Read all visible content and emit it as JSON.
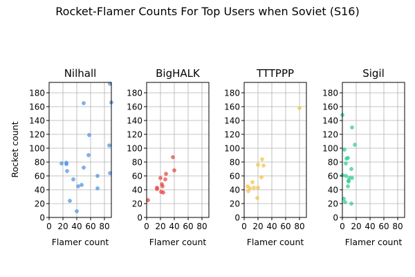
{
  "chart_data": {
    "type": "scatter",
    "title": "Rocket-Flamer Counts For Top Users when Soviet (S16)",
    "xlabel": "Flamer count",
    "ylabel": "Rocket count",
    "xlim": [
      0,
      90
    ],
    "ylim": [
      0,
      195
    ],
    "xticks": [
      0,
      20,
      40,
      60,
      80
    ],
    "yticks": [
      0,
      20,
      40,
      60,
      80,
      100,
      120,
      140,
      160,
      180
    ],
    "grid": true,
    "panels": [
      {
        "name": "Nilhall",
        "color": "#4a90e2",
        "points": [
          [
            88,
            193
          ],
          [
            50,
            165
          ],
          [
            90,
            166
          ],
          [
            58,
            119
          ],
          [
            87,
            104
          ],
          [
            57,
            90
          ],
          [
            18,
            78
          ],
          [
            25,
            79
          ],
          [
            25,
            77
          ],
          [
            26,
            67
          ],
          [
            50,
            72
          ],
          [
            35,
            55
          ],
          [
            47,
            47
          ],
          [
            42,
            45
          ],
          [
            70,
            60
          ],
          [
            88,
            64
          ],
          [
            70,
            42
          ],
          [
            30,
            24
          ],
          [
            40,
            9
          ]
        ]
      },
      {
        "name": "BigHALK",
        "color": "#e8413c",
        "points": [
          [
            38,
            87
          ],
          [
            40,
            68
          ],
          [
            28,
            63
          ],
          [
            20,
            57
          ],
          [
            27,
            55
          ],
          [
            22,
            48
          ],
          [
            23,
            45
          ],
          [
            15,
            43
          ],
          [
            15,
            41
          ],
          [
            21,
            37
          ],
          [
            24,
            36
          ],
          [
            2,
            25
          ]
        ]
      },
      {
        "name": "TTTPPP",
        "color": "#f5c242",
        "points": [
          [
            80,
            158
          ],
          [
            26,
            84
          ],
          [
            28,
            75
          ],
          [
            20,
            76
          ],
          [
            25,
            58
          ],
          [
            12,
            51
          ],
          [
            5,
            45
          ],
          [
            8,
            42
          ],
          [
            14,
            43
          ],
          [
            20,
            43
          ],
          [
            6,
            38
          ],
          [
            19,
            28
          ]
        ]
      },
      {
        "name": "Sigil",
        "color": "#2ecc8f",
        "points": [
          [
            0,
            148
          ],
          [
            14,
            130
          ],
          [
            18,
            105
          ],
          [
            3,
            98
          ],
          [
            8,
            86
          ],
          [
            6,
            85
          ],
          [
            5,
            78
          ],
          [
            13,
            70
          ],
          [
            0,
            61
          ],
          [
            5,
            60
          ],
          [
            10,
            57
          ],
          [
            14,
            57
          ],
          [
            9,
            53
          ],
          [
            9,
            52
          ],
          [
            8,
            45
          ],
          [
            2,
            27
          ],
          [
            4,
            22
          ],
          [
            13,
            20
          ]
        ]
      }
    ]
  }
}
